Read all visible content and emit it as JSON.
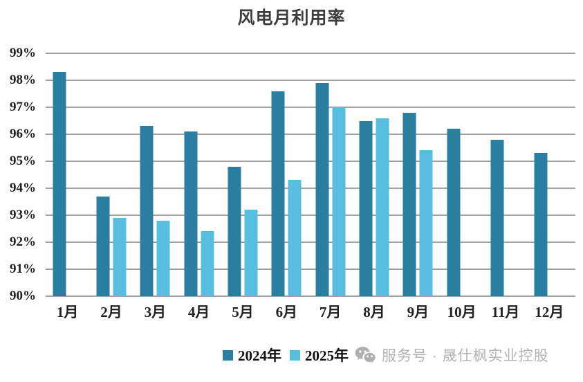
{
  "title": "风电月利用率",
  "chart_data": {
    "type": "bar",
    "title": "风电月利用率",
    "categories": [
      "1月",
      "2月",
      "3月",
      "4月",
      "5月",
      "6月",
      "7月",
      "8月",
      "9月",
      "10月",
      "11月",
      "12月"
    ],
    "series": [
      {
        "name": "2024年",
        "color": "#2a7fa0",
        "values": [
          98.3,
          93.7,
          96.3,
          96.1,
          94.8,
          97.6,
          97.9,
          96.5,
          96.8,
          96.2,
          95.8,
          95.3
        ]
      },
      {
        "name": "2025年",
        "color": "#58bedf",
        "values": [
          null,
          92.9,
          92.8,
          92.4,
          93.2,
          94.3,
          97.0,
          96.6,
          95.4,
          null,
          null,
          null
        ]
      }
    ],
    "xlabel": "",
    "ylabel": "",
    "ylim": [
      90,
      99
    ],
    "ytick_labels": [
      "99%",
      "98%",
      "97%",
      "96%",
      "95%",
      "94%",
      "93%",
      "92%",
      "91%",
      "90%"
    ],
    "grid": true,
    "legend_position": "bottom"
  },
  "legend": {
    "items": [
      {
        "label": "2024年",
        "color": "#2a7fa0"
      },
      {
        "label": "2025年",
        "color": "#58bedf"
      }
    ]
  },
  "watermark": {
    "icon": "wechat-icon",
    "text": "服务号 · 晟仕枫实业控股",
    "color": "#b3b3b3"
  }
}
